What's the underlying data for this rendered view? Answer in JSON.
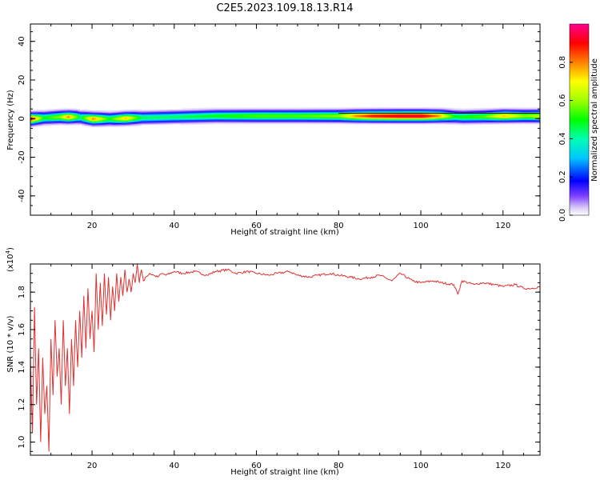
{
  "title": "C2E5.2023.109.18.13.R14",
  "chart_data": [
    {
      "type": "heatmap",
      "xlabel": "Height of straight line (km)",
      "ylabel": "Frequency (Hz)",
      "xlim": [
        5,
        129
      ],
      "ylim": [
        -50,
        49
      ],
      "xticks": [
        20,
        40,
        60,
        80,
        100,
        120
      ],
      "yticks": [
        -40,
        -20,
        0,
        20,
        40
      ],
      "colorbar": {
        "label": "Normalized spectral amplitude",
        "range": [
          0.0,
          1.0
        ],
        "ticks": [
          0.0,
          0.2,
          0.4,
          0.6,
          0.8
        ],
        "tick_labels": [
          "0.0",
          "0.2",
          "0.4",
          "0.6",
          "0.8"
        ]
      },
      "band": {
        "center_freq": [
          [
            5,
            0
          ],
          [
            8,
            0.5
          ],
          [
            12,
            1
          ],
          [
            16,
            1
          ],
          [
            20,
            0
          ],
          [
            25,
            0
          ],
          [
            30,
            0.5
          ],
          [
            40,
            1
          ],
          [
            50,
            1.5
          ],
          [
            60,
            1.5
          ],
          [
            70,
            1.5
          ],
          [
            80,
            1.5
          ],
          [
            90,
            1.5
          ],
          [
            100,
            1.5
          ],
          [
            105,
            1.5
          ],
          [
            110,
            1
          ],
          [
            120,
            1.5
          ],
          [
            129,
            1.5
          ]
        ],
        "peak_amplitude": [
          [
            5,
            0.9
          ],
          [
            8,
            0.5
          ],
          [
            12,
            0.6
          ],
          [
            14,
            0.8
          ],
          [
            17,
            0.45
          ],
          [
            20,
            0.8
          ],
          [
            24,
            0.5
          ],
          [
            28,
            0.75
          ],
          [
            32,
            0.45
          ],
          [
            40,
            0.45
          ],
          [
            50,
            0.5
          ],
          [
            60,
            0.55
          ],
          [
            70,
            0.55
          ],
          [
            80,
            0.6
          ],
          [
            84,
            0.8
          ],
          [
            88,
            0.9
          ],
          [
            95,
            0.95
          ],
          [
            100,
            0.95
          ],
          [
            104,
            0.8
          ],
          [
            108,
            0.5
          ],
          [
            115,
            0.55
          ],
          [
            120,
            0.75
          ],
          [
            125,
            0.6
          ],
          [
            129,
            0.65
          ]
        ]
      }
    },
    {
      "type": "line",
      "xlabel": "Height of straight line (km)",
      "ylabel": "SNR (10 * v/v)",
      "scale_label": "(x10",
      "scale_exponent": "4",
      "scale_suffix": ")",
      "xlim": [
        5,
        129
      ],
      "ylim": [
        0.93,
        1.95
      ],
      "xticks": [
        20,
        40,
        60,
        80,
        100,
        120
      ],
      "yticks": [
        1.0,
        1.2,
        1.4,
        1.6,
        1.8
      ],
      "ytick_labels": [
        "1.0",
        "1.2",
        "1.4",
        "1.6",
        "1.8"
      ],
      "color": "#e03030",
      "series": [
        {
          "x": [
            5,
            5.5,
            6,
            6.5,
            7,
            7.5,
            8,
            8.5,
            9,
            9.5,
            10,
            10.5,
            11,
            11.5,
            12,
            12.5,
            13,
            13.5,
            14,
            14.5,
            15,
            15.5,
            16,
            16.5,
            17,
            17.5,
            18,
            18.5,
            19,
            19.5,
            20,
            20.5,
            21,
            21.5,
            22,
            22.5,
            23,
            23.5,
            24,
            24.5,
            25,
            25.5,
            26,
            26.5,
            27,
            27.5,
            28,
            28.5,
            29,
            29.5,
            30,
            30.5,
            31,
            31.5,
            32,
            32.5,
            33,
            34,
            35,
            36,
            37,
            38,
            40,
            42,
            45,
            48,
            50,
            53,
            55,
            58,
            60,
            63,
            65,
            68,
            70,
            73,
            75,
            78,
            80,
            83,
            85,
            88,
            90,
            93,
            95,
            98,
            100,
            103,
            105,
            108,
            109,
            110,
            113,
            115,
            118,
            120,
            123,
            125,
            127,
            129
          ],
          "y": [
            1.45,
            1.05,
            1.72,
            1.2,
            1.5,
            1.0,
            1.45,
            1.15,
            1.3,
            0.95,
            1.55,
            1.25,
            1.65,
            1.35,
            1.5,
            1.2,
            1.65,
            1.3,
            1.5,
            1.15,
            1.55,
            1.3,
            1.65,
            1.4,
            1.7,
            1.45,
            1.78,
            1.5,
            1.82,
            1.55,
            1.7,
            1.48,
            1.9,
            1.6,
            1.85,
            1.62,
            1.9,
            1.68,
            1.88,
            1.65,
            1.83,
            1.7,
            1.9,
            1.75,
            1.88,
            1.78,
            1.92,
            1.8,
            1.87,
            1.8,
            1.9,
            1.85,
            1.95,
            1.85,
            1.92,
            1.86,
            1.88,
            1.9,
            1.89,
            1.88,
            1.9,
            1.89,
            1.91,
            1.9,
            1.91,
            1.89,
            1.91,
            1.92,
            1.9,
            1.91,
            1.9,
            1.89,
            1.9,
            1.91,
            1.89,
            1.88,
            1.89,
            1.9,
            1.89,
            1.88,
            1.87,
            1.88,
            1.89,
            1.86,
            1.9,
            1.86,
            1.85,
            1.86,
            1.85,
            1.84,
            1.79,
            1.86,
            1.84,
            1.85,
            1.84,
            1.83,
            1.84,
            1.82,
            1.82,
            1.83
          ]
        }
      ]
    }
  ]
}
